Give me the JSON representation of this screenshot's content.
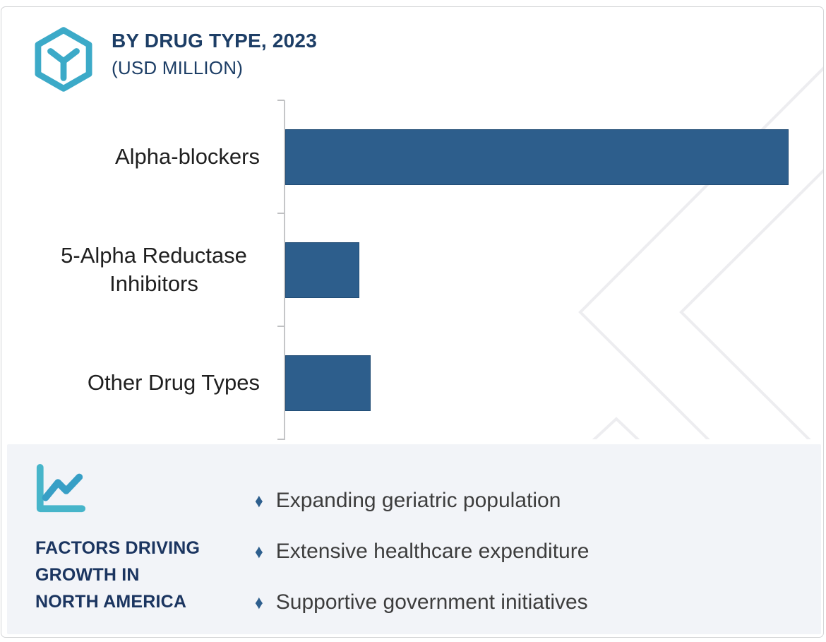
{
  "header": {
    "title": "BY DRUG TYPE, 2023",
    "subtitle": "(USD MILLION)",
    "logo_icon": "hexagon-y-logo",
    "title_color": "#1d3e66",
    "logo_color": "#3caac8"
  },
  "chart_data": {
    "type": "bar",
    "orientation": "horizontal",
    "title": "BY DRUG TYPE, 2023",
    "subtitle": "(USD MILLION)",
    "unit": "USD Million",
    "year": "2023",
    "categories": [
      "Alpha-blockers",
      "5-Alpha Reductase Inhibitors",
      "Other Drug Types"
    ],
    "values_pct_of_max": [
      100,
      14.7,
      17
    ],
    "value_axis_labels_shown": false,
    "data_labels_shown": false,
    "grid": false,
    "legend": false,
    "bar_color": "#2d5e8c",
    "axis_color": "#c5c6c8"
  },
  "factors": {
    "icon": "line-chart-icon",
    "heading_lines": [
      "FACTORS DRIVING",
      "GROWTH IN",
      "NORTH AMERICA"
    ],
    "bullet_marker": "♦",
    "items": [
      "Expanding geriatric population",
      "Extensive healthcare expenditure",
      "Supportive government initiatives"
    ],
    "heading_color": "#1b3560",
    "panel_bg": "#f2f4f8",
    "marker_color": "#2e5f8e",
    "icon_color": "#45b2ca"
  },
  "watermark": {
    "pattern": "nested light chevrons",
    "color": "#ededf0"
  }
}
